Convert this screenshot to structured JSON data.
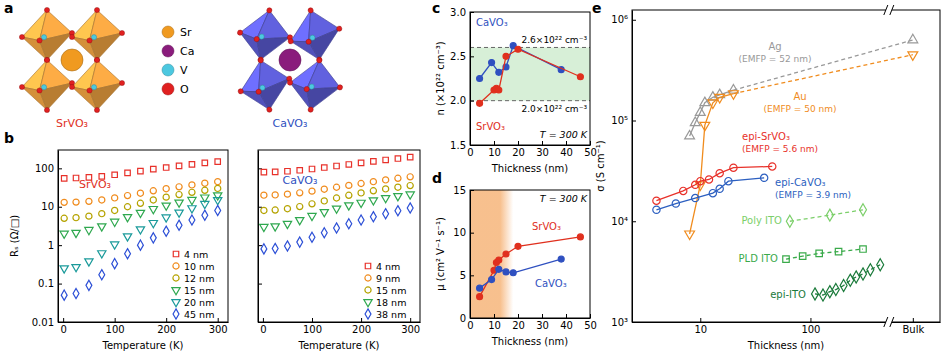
{
  "structure": {
    "panel": "a",
    "compounds": [
      {
        "name": "SrVO₃",
        "color": "#e0301e",
        "octahedron_color": "#eca040"
      },
      {
        "name": "CaVO₃",
        "color": "#2f50c0",
        "octahedron_color": "#5a5ad0"
      }
    ],
    "atoms": [
      {
        "label": "Sr",
        "color": "#f09a20"
      },
      {
        "label": "Ca",
        "color": "#8a1c7c"
      },
      {
        "label": "V",
        "color": "#4cc8e0"
      },
      {
        "label": "O",
        "color": "#e02020"
      }
    ]
  },
  "chart_data": [
    {
      "panel": "b",
      "type": "scatter",
      "title": "SrVO₃",
      "color": "#e0301e",
      "x_label": "Temperature (K)",
      "y_label": "Rₛ (Ω/□)",
      "log": "y",
      "legend": "lower right",
      "x": [
        2,
        25,
        50,
        75,
        100,
        125,
        150,
        175,
        200,
        225,
        250,
        275,
        300
      ],
      "xlim": [
        -10,
        320
      ],
      "xticks": [
        0,
        100,
        200,
        300
      ],
      "ylim": [
        0.01,
        300
      ],
      "yticks": [
        0.01,
        0.1,
        1,
        10,
        100
      ],
      "series": [
        {
          "name": "4 nm",
          "color": "#e8312a",
          "marker": "open-square",
          "values": [
            55,
            56,
            58,
            62,
            68,
            76,
            85,
            95,
            105,
            116,
            127,
            139,
            150
          ]
        },
        {
          "name": "10 nm",
          "color": "#f08c1e",
          "marker": "open-circle",
          "values": [
            13,
            13.2,
            13.8,
            15,
            17,
            19.5,
            22.5,
            26,
            29.5,
            33,
            37,
            41,
            45
          ]
        },
        {
          "name": "12 nm",
          "color": "#b5a300",
          "marker": "open-circle",
          "values": [
            5,
            5.2,
            5.7,
            6.6,
            8,
            10,
            12.3,
            15,
            17.8,
            20.7,
            23.7,
            26.8,
            30
          ]
        },
        {
          "name": "15 nm",
          "color": "#2fa84f",
          "marker": "open-triangle-down",
          "values": [
            2,
            2.1,
            2.5,
            3.1,
            4.1,
            5.4,
            7,
            8.8,
            10.8,
            12.9,
            15.1,
            17.5,
            20
          ]
        },
        {
          "name": "20 nm",
          "color": "#1a9a9a",
          "marker": "open-triangle-down",
          "values": [
            0.25,
            0.27,
            0.38,
            0.62,
            1.05,
            1.7,
            2.6,
            3.8,
            5.3,
            7.1,
            9.2,
            11.9,
            15
          ]
        },
        {
          "name": "45 nm",
          "color": "#2c4fd6",
          "marker": "open-diamond",
          "values": [
            0.05,
            0.055,
            0.09,
            0.17,
            0.33,
            0.6,
            1,
            1.55,
            2.3,
            3.3,
            4.5,
            6,
            8
          ]
        }
      ]
    },
    {
      "type": "scatter",
      "title": "CaVO₃",
      "color": "#2f50c0",
      "x_label": "Temperature (K)",
      "log": "y",
      "legend": "lower right",
      "tick_labels": "x",
      "x": [
        2,
        25,
        50,
        75,
        100,
        125,
        150,
        175,
        200,
        225,
        250,
        275,
        300
      ],
      "xlim": [
        -10,
        320
      ],
      "xticks": [
        0,
        100,
        200,
        300
      ],
      "ylim": [
        0.01,
        300
      ],
      "yticks": [
        0.01,
        0.1,
        1,
        10,
        100
      ],
      "series": [
        {
          "name": "4 nm",
          "color": "#e8312a",
          "marker": "open-square",
          "values": [
            80,
            81,
            84,
            89,
            96,
            105,
            115,
            126,
            138,
            151,
            165,
            180,
            195
          ]
        },
        {
          "name": "9 nm",
          "color": "#f08c1e",
          "marker": "open-circle",
          "values": [
            20,
            20.3,
            21.3,
            23,
            25.5,
            28.6,
            32.2,
            36,
            40.3,
            45,
            50,
            55,
            60
          ]
        },
        {
          "name": "15 nm",
          "color": "#b5a300",
          "marker": "open-circle",
          "values": [
            8,
            8.2,
            8.9,
            10.1,
            11.9,
            14.2,
            16.9,
            19.9,
            22.9,
            26,
            29.1,
            32.3,
            35.5
          ]
        },
        {
          "name": "18 nm",
          "color": "#2fa84f",
          "marker": "open-triangle-down",
          "values": [
            3,
            3.1,
            3.6,
            4.5,
            5.8,
            7.3,
            9,
            10.9,
            12.8,
            14.8,
            16.9,
            19,
            21
          ]
        },
        {
          "name": "38 nm",
          "color": "#2c4fd6",
          "marker": "open-diamond",
          "values": [
            0.8,
            0.82,
            0.95,
            1.2,
            1.6,
            2.1,
            2.8,
            3.6,
            4.5,
            5.5,
            6.6,
            7.9,
            9.3
          ]
        }
      ]
    },
    {
      "panel": "c",
      "type": "line",
      "x_label": "Thickness (nm)",
      "y_label": "n (×10²² cm⁻³)",
      "xlim": [
        0,
        50
      ],
      "xticks": [
        0,
        10,
        20,
        30,
        40,
        50
      ],
      "ylim": [
        1.5,
        3
      ],
      "yticks": [
        1.5,
        {
          "value": 2,
          "label": "2.0"
        },
        2.5,
        {
          "value": 3,
          "label": "3.0"
        }
      ],
      "reference_lines": [
        {
          "value": 2.6,
          "label": "2.6×10²² cm⁻³"
        },
        {
          "value": 2,
          "label": "2.0×10²² cm⁻³"
        }
      ],
      "annotations": [
        "T = 300 K"
      ],
      "series": [
        {
          "name": "CaVO₃",
          "color": "#2f50c0",
          "marker": "circle",
          "x": [
            4,
            9,
            12,
            15,
            18,
            38
          ],
          "values": [
            2.25,
            2.43,
            2.32,
            2.38,
            2.62,
            2.35
          ]
        },
        {
          "name": "SrVO₃",
          "color": "#e0301e",
          "marker": "circle",
          "x": [
            4,
            10,
            11,
            12,
            15,
            20,
            46
          ],
          "values": [
            1.97,
            2.12,
            2.14,
            2.12,
            2.5,
            2.58,
            2.27
          ]
        }
      ]
    },
    {
      "panel": "d",
      "type": "line",
      "x_label": "Thickness (nm)",
      "y_label": "μ (cm² V⁻¹ s⁻¹)",
      "xlim": [
        0,
        50
      ],
      "xticks": [
        0,
        10,
        20,
        30,
        40,
        50
      ],
      "ylim": [
        0,
        15
      ],
      "yticks": [
        0,
        5,
        10,
        15
      ],
      "shaded_range": [
        0,
        18
      ],
      "annotations": [
        "T = 300 K"
      ],
      "series": [
        {
          "name": "SrVO₃",
          "color": "#e0301e",
          "marker": "circle",
          "x": [
            4,
            10,
            11,
            12,
            15,
            20,
            46
          ],
          "values": [
            2.5,
            5.6,
            6.5,
            6.8,
            7.5,
            8.4,
            9.5
          ]
        },
        {
          "name": "CaVO₃",
          "color": "#2f50c0",
          "marker": "circle",
          "x": [
            4,
            9,
            12,
            15,
            18,
            38
          ],
          "values": [
            3.5,
            4.5,
            5.7,
            5.4,
            5.3,
            6.9
          ]
        }
      ]
    },
    {
      "panel": "e",
      "type": "line",
      "x_label": "Thickness (nm)",
      "y_label": "σ (S cm⁻¹)",
      "log": true,
      "xlim": [
        2.4,
        1500
      ],
      "xticks": [
        10,
        100,
        {
          "value": 850,
          "label": "Bulk"
        }
      ],
      "ylim": [
        1000,
        1250000
      ],
      "yticks": [
        {
          "value": 1000,
          "label": "10³"
        },
        {
          "value": 10000,
          "label": "10⁴"
        },
        {
          "value": 100000,
          "label": "10⁵"
        },
        {
          "value": 1000000,
          "label": "10⁶"
        }
      ],
      "series": [
        {
          "name": "Ag",
          "note": "(EMFP = 52 nm)",
          "color": "#999999",
          "marker": "open-triangle-up",
          "line_style": "solid",
          "x": [
            8,
            9,
            10,
            11,
            13,
            15,
            20
          ],
          "values": [
            70000,
            95000,
            120000,
            150000,
            170000,
            180000,
            200000
          ],
          "bulk": 630000
        },
        {
          "name": "Au",
          "note": "(EMFP = 50 nm)",
          "color": "#f08c1e",
          "marker": "open-triangle-down",
          "line_style": "solid",
          "x": [
            8,
            10,
            11,
            13,
            15,
            20
          ],
          "values": [
            7500,
            23000,
            90000,
            150000,
            170000,
            185000
          ],
          "bulk": 450000
        },
        {
          "name": "epi-SrVO₃",
          "note": "(EMFP = 5.6 nm)",
          "color": "#e8312a",
          "marker": "open-circle",
          "line_style": "solid",
          "x": [
            4,
            7,
            9,
            10,
            12,
            15,
            20,
            45
          ],
          "values": [
            16000,
            20000,
            23000,
            25000,
            26000,
            30000,
            34000,
            35000
          ]
        },
        {
          "name": "epi-CaVO₃",
          "note": "(EMFP = 3.9 nm)",
          "color": "#2c5fc0",
          "marker": "open-circle",
          "line_style": "solid",
          "x": [
            4,
            6,
            9,
            13,
            15,
            18,
            38
          ],
          "values": [
            13000,
            15000,
            17000,
            19000,
            21000,
            25000,
            27000
          ]
        },
        {
          "name": "Poly ITO",
          "color": "#7ccf6a",
          "marker": "open-diamond",
          "line_style": "dashed",
          "x": [
            65,
            150,
            300
          ],
          "values": [
            10000,
            11500,
            13000
          ]
        },
        {
          "name": "PLD ITO",
          "color": "#3aaa4a",
          "marker": "open-square",
          "line_style": "dashed",
          "x": [
            60,
            85,
            120,
            180,
            300
          ],
          "values": [
            4200,
            4500,
            4800,
            5000,
            5300
          ]
        },
        {
          "name": "epi-ITO",
          "color": "#1a7a3a",
          "marker": "open-diamond",
          "line_style": "dashed",
          "x": [
            110,
            130,
            150,
            170,
            200,
            230,
            260,
            300,
            350,
            430
          ],
          "values": [
            1900,
            1850,
            2000,
            2100,
            2300,
            2600,
            2800,
            3000,
            3300,
            3700
          ]
        }
      ]
    }
  ]
}
